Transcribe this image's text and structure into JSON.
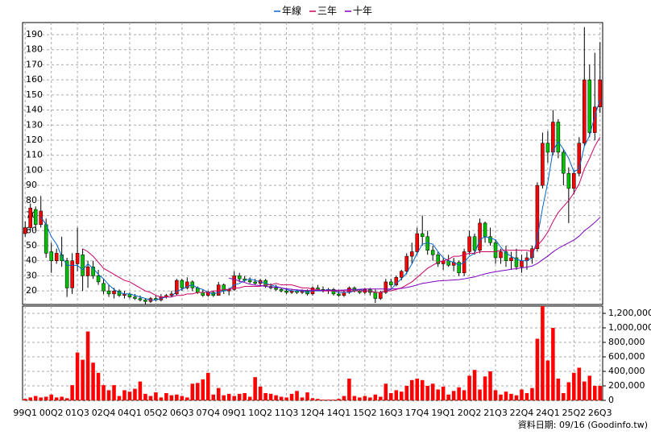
{
  "chart_data": {
    "type": "candlestick",
    "legend": [
      {
        "name": "年線",
        "color": "#0066cc"
      },
      {
        "name": "三年",
        "color": "#cc0066"
      },
      {
        "name": "十年",
        "color": "#8000c0"
      }
    ],
    "source": "資料日期: 09/16 (Goodinfo.tw)",
    "up_color": "#ff0000",
    "down_color": "#00c000",
    "volume_color": "#ff0000",
    "grid": true,
    "categories": [
      "99Q1",
      null,
      null,
      null,
      null,
      "00Q2",
      null,
      null,
      null,
      null,
      "01Q3",
      null,
      null,
      null,
      null,
      "02Q4",
      null,
      null,
      null,
      null,
      "04Q1",
      null,
      null,
      null,
      null,
      "05Q2",
      null,
      null,
      null,
      null,
      "06Q3",
      null,
      null,
      null,
      null,
      "07Q4",
      null,
      null,
      null,
      null,
      "09Q1",
      null,
      null,
      null,
      null,
      "10Q2",
      null,
      null,
      null,
      null,
      "11Q3",
      null,
      null,
      null,
      null,
      "12Q4",
      null,
      null,
      null,
      null,
      "14Q1",
      null,
      null,
      null,
      null,
      "15Q2",
      null,
      null,
      null,
      null,
      "16Q3",
      null,
      null,
      null,
      null,
      "17Q4",
      null,
      null,
      null,
      null,
      "19Q1",
      null,
      null,
      null,
      null,
      "20Q2",
      null,
      null,
      null,
      null,
      "21Q3",
      null,
      null,
      null,
      null,
      "22Q4",
      null,
      null,
      null,
      null,
      "24Q1",
      null,
      null,
      null,
      null,
      "25Q2",
      null,
      null,
      null,
      null,
      "26Q3"
    ],
    "candles": [
      [
        58,
        66,
        56,
        62
      ],
      [
        62,
        78,
        60,
        75
      ],
      [
        74,
        76,
        60,
        64
      ],
      [
        64,
        83,
        62,
        73
      ],
      [
        64,
        68,
        42,
        45
      ],
      [
        46,
        52,
        32,
        40
      ],
      [
        40,
        48,
        38,
        45
      ],
      [
        44,
        56,
        36,
        40
      ],
      [
        40,
        42,
        16,
        22
      ],
      [
        22,
        45,
        18,
        40
      ],
      [
        38,
        62,
        33,
        45
      ],
      [
        44,
        48,
        20,
        30
      ],
      [
        30,
        40,
        22,
        36
      ],
      [
        36,
        40,
        28,
        30
      ],
      [
        30,
        34,
        24,
        26
      ],
      [
        25,
        28,
        18,
        20
      ],
      [
        20,
        24,
        16,
        18
      ],
      [
        18,
        22,
        15,
        20
      ],
      [
        20,
        21,
        16,
        17
      ],
      [
        17,
        20,
        15,
        18
      ],
      [
        18,
        19,
        15,
        16
      ],
      [
        16,
        18,
        14,
        15
      ],
      [
        15,
        17,
        13,
        14
      ],
      [
        14,
        15,
        11,
        13
      ],
      [
        13,
        16,
        12,
        15
      ],
      [
        15,
        17,
        13,
        14
      ],
      [
        14,
        18,
        13,
        16
      ],
      [
        16,
        18,
        15,
        17
      ],
      [
        17,
        20,
        16,
        18
      ],
      [
        18,
        28,
        17,
        27
      ],
      [
        27,
        28,
        20,
        22
      ],
      [
        22,
        29,
        21,
        26
      ],
      [
        26,
        27,
        20,
        22
      ],
      [
        22,
        23,
        18,
        19
      ],
      [
        19,
        21,
        16,
        17
      ],
      [
        17,
        20,
        16,
        19
      ],
      [
        19,
        20,
        16,
        17
      ],
      [
        17,
        26,
        17,
        24
      ],
      [
        24,
        25,
        18,
        20
      ],
      [
        20,
        22,
        17,
        21
      ],
      [
        21,
        33,
        20,
        30
      ],
      [
        30,
        32,
        26,
        28
      ],
      [
        28,
        30,
        26,
        27
      ],
      [
        27,
        29,
        25,
        26
      ],
      [
        26,
        28,
        24,
        25
      ],
      [
        25,
        28,
        23,
        27
      ],
      [
        27,
        28,
        22,
        23
      ],
      [
        23,
        25,
        21,
        22
      ],
      [
        22,
        24,
        20,
        21
      ],
      [
        21,
        22,
        19,
        20
      ],
      [
        20,
        22,
        18,
        19
      ],
      [
        19,
        21,
        18,
        20
      ],
      [
        20,
        21,
        18,
        19
      ],
      [
        19,
        21,
        18,
        20
      ],
      [
        20,
        21,
        17,
        18
      ],
      [
        18,
        23,
        17,
        22
      ],
      [
        22,
        24,
        20,
        21
      ],
      [
        21,
        23,
        19,
        20
      ],
      [
        20,
        22,
        18,
        21
      ],
      [
        21,
        22,
        17,
        18
      ],
      [
        18,
        20,
        16,
        17
      ],
      [
        17,
        20,
        16,
        19
      ],
      [
        19,
        23,
        18,
        22
      ],
      [
        22,
        23,
        19,
        20
      ],
      [
        20,
        21,
        18,
        19
      ],
      [
        19,
        22,
        18,
        21
      ],
      [
        21,
        22,
        17,
        19
      ],
      [
        19,
        21,
        12,
        15
      ],
      [
        15,
        20,
        14,
        19
      ],
      [
        19,
        28,
        18,
        26
      ],
      [
        26,
        28,
        22,
        24
      ],
      [
        24,
        30,
        23,
        29
      ],
      [
        29,
        34,
        27,
        33
      ],
      [
        33,
        45,
        31,
        43
      ],
      [
        43,
        52,
        38,
        46
      ],
      [
        46,
        62,
        44,
        58
      ],
      [
        58,
        70,
        50,
        56
      ],
      [
        56,
        60,
        44,
        47
      ],
      [
        47,
        50,
        40,
        44
      ],
      [
        44,
        46,
        36,
        38
      ],
      [
        38,
        42,
        34,
        40
      ],
      [
        40,
        44,
        36,
        37
      ],
      [
        37,
        42,
        33,
        39
      ],
      [
        39,
        40,
        30,
        32
      ],
      [
        32,
        48,
        30,
        46
      ],
      [
        46,
        60,
        44,
        56
      ],
      [
        56,
        58,
        44,
        47
      ],
      [
        47,
        68,
        45,
        65
      ],
      [
        65,
        66,
        52,
        56
      ],
      [
        56,
        62,
        50,
        52
      ],
      [
        52,
        54,
        38,
        42
      ],
      [
        42,
        48,
        38,
        46
      ],
      [
        46,
        50,
        36,
        40
      ],
      [
        40,
        46,
        34,
        42
      ],
      [
        42,
        48,
        34,
        36
      ],
      [
        36,
        44,
        32,
        40
      ],
      [
        40,
        46,
        34,
        42
      ],
      [
        42,
        50,
        38,
        48
      ],
      [
        48,
        92,
        46,
        90
      ],
      [
        90,
        125,
        88,
        118
      ],
      [
        118,
        126,
        105,
        112
      ],
      [
        112,
        140,
        110,
        132
      ],
      [
        132,
        134,
        108,
        112
      ],
      [
        112,
        114,
        90,
        98
      ],
      [
        98,
        102,
        65,
        88
      ],
      [
        88,
        100,
        84,
        98
      ],
      [
        98,
        122,
        96,
        118
      ],
      [
        118,
        195,
        116,
        160
      ],
      [
        160,
        170,
        122,
        125
      ],
      [
        125,
        178,
        120,
        142
      ],
      [
        142,
        185,
        138,
        160
      ]
    ],
    "ma": [
      [
        null,
        null,
        null,
        69,
        64,
        56,
        51,
        43,
        37,
        37,
        37,
        34,
        38,
        35,
        31,
        28,
        24,
        21,
        19,
        18,
        18,
        17,
        16,
        15,
        14,
        14,
        15,
        16,
        16,
        20,
        21,
        23,
        24,
        22,
        21,
        19,
        18,
        19,
        20,
        21,
        24,
        25,
        27,
        28,
        27,
        26,
        25,
        24,
        23,
        22,
        21,
        20,
        20,
        20,
        19,
        20,
        20,
        20,
        21,
        20,
        19,
        19,
        19,
        20,
        21,
        20,
        20,
        19,
        19,
        20,
        21,
        25,
        28,
        32,
        38,
        45,
        51,
        52,
        51,
        46,
        42,
        40,
        39,
        37,
        39,
        43,
        45,
        54,
        56,
        55,
        54,
        49,
        45,
        43,
        41,
        40,
        40,
        42,
        55,
        75,
        92,
        113,
        119,
        114,
        108,
        99,
        101,
        116,
        123,
        136,
        147
      ],
      [
        null,
        null,
        null,
        null,
        null,
        null,
        null,
        null,
        null,
        null,
        null,
        48,
        46,
        43,
        39,
        35,
        33,
        31,
        29,
        27,
        26,
        24,
        22,
        20,
        19,
        17,
        16,
        16,
        16,
        17,
        17,
        18,
        18,
        19,
        19,
        19,
        20,
        20,
        21,
        21,
        22,
        22,
        23,
        23,
        23,
        23,
        24,
        24,
        25,
        24,
        24,
        24,
        23,
        22,
        22,
        21,
        21,
        20,
        20,
        20,
        20,
        20,
        20,
        20,
        20,
        20,
        20,
        19,
        19,
        20,
        20,
        21,
        22,
        24,
        26,
        29,
        32,
        35,
        37,
        39,
        40,
        41,
        43,
        43,
        44,
        45,
        45,
        46,
        46,
        46,
        46,
        47,
        47,
        47,
        47,
        47,
        47,
        46,
        50,
        54,
        59,
        66,
        72,
        76,
        80,
        85,
        91,
        101,
        108,
        116,
        122
      ],
      [
        null,
        null,
        null,
        null,
        null,
        null,
        null,
        null,
        null,
        null,
        null,
        null,
        null,
        null,
        null,
        null,
        null,
        null,
        null,
        null,
        null,
        null,
        null,
        null,
        null,
        null,
        null,
        null,
        null,
        null,
        null,
        null,
        null,
        null,
        null,
        null,
        null,
        null,
        null,
        28.5,
        27.7,
        26.5,
        25.6,
        24.4,
        23.9,
        23.6,
        23,
        22.6,
        22.5,
        22,
        21.4,
        21.1,
        20.7,
        20.5,
        20.3,
        20.3,
        20.4,
        20.4,
        20.5,
        20.5,
        20.5,
        20.6,
        20.8,
        21,
        21.1,
        21.3,
        21.3,
        21.3,
        21.3,
        21.3,
        21.3,
        21.4,
        21.7,
        22.3,
        23,
        24,
        25,
        25.5,
        26.1,
        26.6,
        26.8,
        27,
        27.3,
        27.5,
        28,
        28.7,
        29.3,
        30.4,
        31.3,
        32.1,
        32.7,
        33.3,
        33.8,
        34.4,
        34.8,
        35.3,
        35.8,
        36.5,
        38.2,
        40.7,
        43.1,
        45.9,
        48.2,
        50.1,
        51.9,
        53.8,
        56.3,
        59.9,
        62.5,
        65.4,
        68.8
      ]
    ],
    "volume": [
      20000,
      40000,
      60000,
      40000,
      50000,
      80000,
      40000,
      50000,
      30000,
      210000,
      660000,
      560000,
      950000,
      520000,
      380000,
      210000,
      140000,
      210000,
      60000,
      140000,
      120000,
      160000,
      260000,
      90000,
      60000,
      110000,
      40000,
      100000,
      70000,
      80000,
      60000,
      40000,
      230000,
      240000,
      290000,
      380000,
      80000,
      170000,
      70000,
      90000,
      60000,
      90000,
      100000,
      50000,
      320000,
      190000,
      100000,
      90000,
      70000,
      50000,
      40000,
      90000,
      130000,
      40000,
      110000,
      30000,
      20000,
      10000,
      10000,
      10000,
      20000,
      60000,
      300000,
      60000,
      40000,
      60000,
      40000,
      80000,
      50000,
      230000,
      100000,
      140000,
      120000,
      200000,
      280000,
      300000,
      280000,
      200000,
      230000,
      150000,
      190000,
      80000,
      130000,
      180000,
      140000,
      340000,
      420000,
      150000,
      330000,
      400000,
      140000,
      80000,
      120000,
      90000,
      70000,
      150000,
      100000,
      170000,
      850000,
      1300000,
      550000,
      1000000,
      300000,
      100000,
      250000,
      380000,
      450000,
      260000,
      340000,
      200000,
      200000
    ],
    "ylim": [
      11,
      198
    ],
    "yticks": [
      20,
      30,
      40,
      50,
      60,
      70,
      80,
      90,
      100,
      110,
      120,
      130,
      140,
      150,
      160,
      170,
      180,
      190
    ],
    "y2lim": [
      0,
      1300000
    ],
    "y2ticks": [
      0,
      {
        "value": 200000,
        "label": "200,000"
      },
      {
        "value": 400000,
        "label": "400,000"
      },
      {
        "value": 600000,
        "label": "600,000"
      },
      {
        "value": 800000,
        "label": "800,000"
      },
      {
        "value": 1000000,
        "label": "1,000,000"
      },
      {
        "value": 1200000,
        "label": "1,200,000"
      }
    ]
  }
}
